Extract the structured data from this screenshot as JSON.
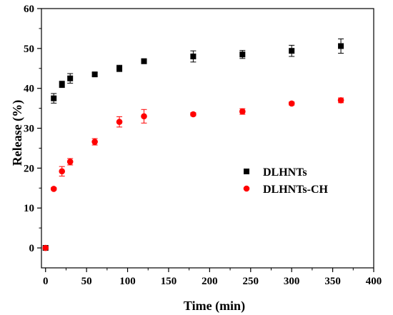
{
  "chart_data": {
    "type": "scatter",
    "title": "",
    "xlabel": "Time (min)",
    "ylabel": "Release (%)",
    "xlim": [
      -5,
      400
    ],
    "ylim": [
      -5,
      60
    ],
    "x_ticks": [
      0,
      50,
      100,
      150,
      200,
      250,
      300,
      350,
      400
    ],
    "y_ticks": [
      0,
      10,
      20,
      30,
      40,
      50,
      60
    ],
    "x_tick_labels": [
      "0",
      "50",
      "100",
      "150",
      "200",
      "250",
      "300",
      "350",
      "400"
    ],
    "y_tick_labels": [
      "0",
      "10",
      "20",
      "30",
      "40",
      "50",
      "60"
    ],
    "grid": false,
    "legend_position": "right",
    "series": [
      {
        "name": "DLHNTs",
        "marker": "square",
        "color": "#000000",
        "x": [
          0,
          10,
          20,
          30,
          60,
          90,
          120,
          180,
          240,
          300,
          360
        ],
        "y": [
          0,
          37.5,
          41,
          42.5,
          43.5,
          45,
          46.8,
          48,
          48.5,
          49.4,
          50.6
        ],
        "error": [
          0,
          1.2,
          0.8,
          1.2,
          0.4,
          0.8,
          0.6,
          1.4,
          1.0,
          1.4,
          1.8
        ]
      },
      {
        "name": "DLHNTs-CH",
        "marker": "circle",
        "color": "#ff0000",
        "x": [
          0,
          10,
          20,
          30,
          60,
          90,
          120,
          180,
          240,
          300,
          360
        ],
        "y": [
          0,
          14.8,
          19.2,
          21.6,
          26.6,
          31.6,
          33,
          33.5,
          34.2,
          36.2,
          37
        ],
        "error": [
          0,
          0.3,
          1.2,
          0.8,
          0.8,
          1.3,
          1.7,
          0.4,
          0.7,
          0.4,
          0.6
        ]
      }
    ]
  }
}
